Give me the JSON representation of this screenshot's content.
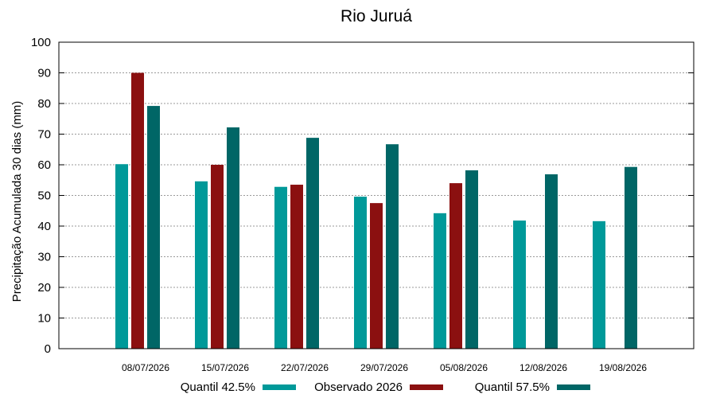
{
  "chart_data": {
    "type": "bar",
    "title": "Rio Juruá",
    "xlabel": "",
    "ylabel": "Precipitação Acumulada 30 dias (mm)",
    "ylim": [
      0,
      100
    ],
    "yticks": [
      0,
      10,
      20,
      30,
      40,
      50,
      60,
      70,
      80,
      90,
      100
    ],
    "grid": true,
    "legend_position": "bottom",
    "categories": [
      "08/07/2026",
      "15/07/2026",
      "22/07/2026",
      "29/07/2026",
      "05/08/2026",
      "12/08/2026",
      "19/08/2026"
    ],
    "series": [
      {
        "name": "Quantil 42.5%",
        "color": "#009999",
        "values": [
          60.2,
          54.6,
          52.8,
          49.6,
          44.2,
          41.8,
          41.6
        ]
      },
      {
        "name": "Observado 2026",
        "color": "#8b1010",
        "values": [
          90.0,
          60.0,
          53.5,
          47.5,
          54.0,
          null,
          null
        ]
      },
      {
        "name": "Quantil 57.5%",
        "color": "#006666",
        "values": [
          79.2,
          72.2,
          68.8,
          66.7,
          58.2,
          56.9,
          59.3
        ]
      }
    ]
  }
}
